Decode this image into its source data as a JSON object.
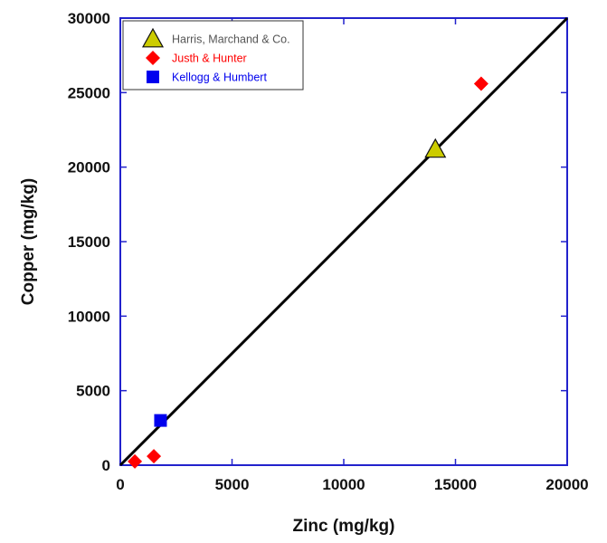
{
  "chart_data": {
    "type": "scatter",
    "title": "",
    "xlabel": "Zinc (mg/kg)",
    "ylabel": "Copper (mg/kg)",
    "xlim": [
      0,
      20000
    ],
    "ylim": [
      0,
      30000
    ],
    "xticks": [
      0,
      5000,
      10000,
      15000,
      20000
    ],
    "yticks": [
      0,
      5000,
      10000,
      15000,
      20000,
      25000,
      30000
    ],
    "xtick_labels": [
      "0",
      "5000",
      "10000",
      "15000",
      "20000"
    ],
    "ytick_labels": [
      "0",
      "5000",
      "10000",
      "15000",
      "20000",
      "25000",
      "30000"
    ],
    "grid": false,
    "legend_position": "top-left",
    "series": [
      {
        "name": "Harris, Marchand & Co.",
        "marker": "triangle",
        "color": "#cccc00",
        "label_color": "#555555",
        "points": [
          [
            14100,
            21200
          ]
        ]
      },
      {
        "name": "Justh & Hunter",
        "marker": "diamond",
        "color": "#ff0000",
        "label_color": "#ff0000",
        "points": [
          [
            16150,
            25600
          ],
          [
            650,
            250
          ],
          [
            1500,
            600
          ]
        ]
      },
      {
        "name": "Kellogg & Humbert",
        "marker": "square",
        "color": "#0000ee",
        "label_color": "#0000ee",
        "points": [
          [
            1800,
            3000
          ]
        ]
      }
    ],
    "reference_line": {
      "from": [
        0,
        0
      ],
      "to": [
        20000,
        30000
      ],
      "color": "#000000"
    },
    "frame_color": "#2222cc"
  }
}
